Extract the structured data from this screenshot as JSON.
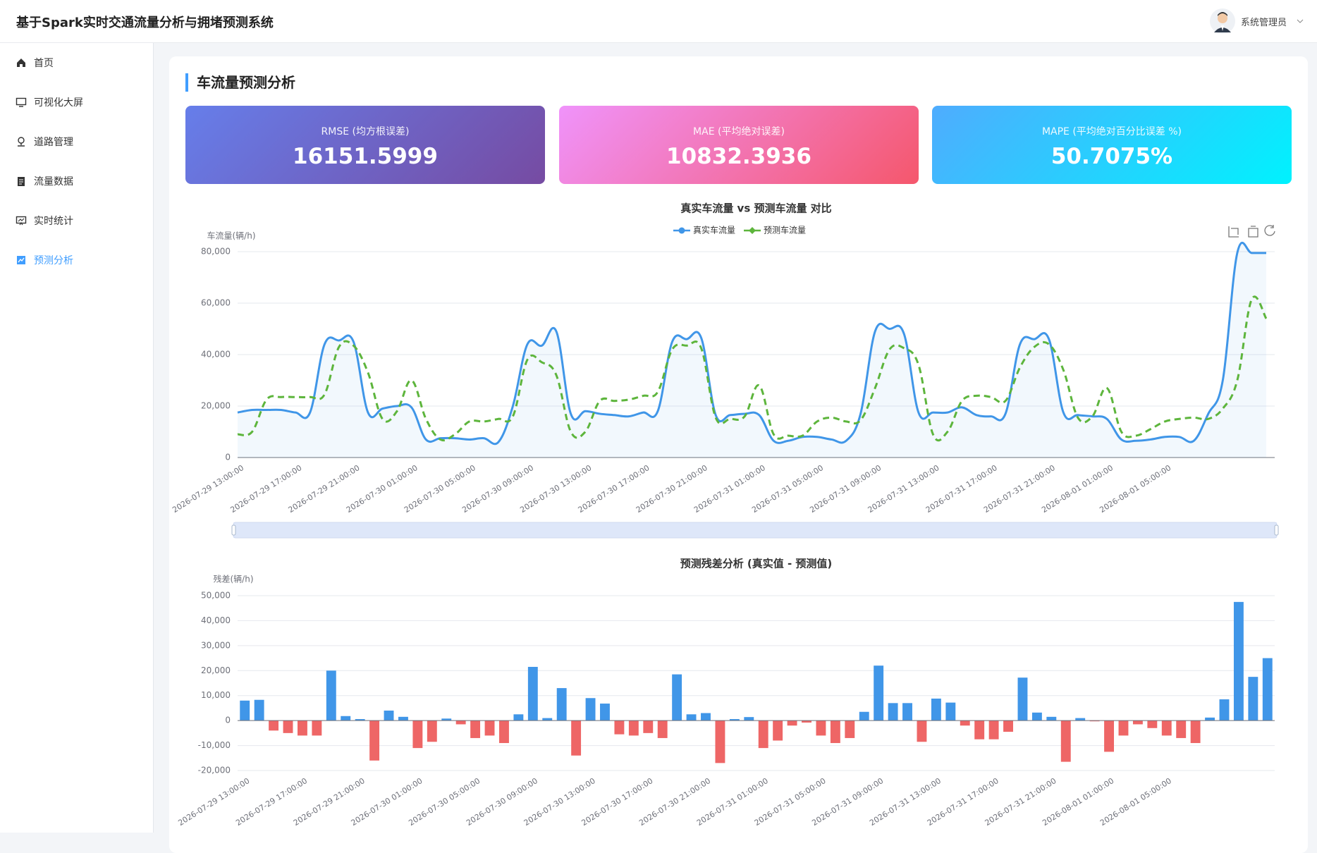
{
  "header": {
    "title": "基于Spark实时交通流量分析与拥堵预测系统",
    "user": "系统管理员"
  },
  "nav": [
    "首页",
    "可视化大屏",
    "道路管理",
    "流量数据",
    "实时统计",
    "预测分析"
  ],
  "section_title": "车流量预测分析",
  "metrics": [
    {
      "label": "RMSE (均方根误差)",
      "value": "16151.5999"
    },
    {
      "label": "MAE (平均绝对误差)",
      "value": "10832.3936"
    },
    {
      "label": "MAPE (平均绝对百分比误差 %)",
      "value": "50.7075%"
    }
  ],
  "chart_data": [
    {
      "type": "line",
      "title": "真实车流量 vs 预测车流量 对比",
      "y_label": "车流量(辆/h)",
      "categories": [
        "2026-07-29 13:00:00",
        null,
        null,
        null,
        "2026-07-29 17:00:00",
        null,
        null,
        null,
        "2026-07-29 21:00:00",
        null,
        null,
        null,
        "2026-07-30 01:00:00",
        null,
        null,
        null,
        "2026-07-30 05:00:00",
        null,
        null,
        null,
        "2026-07-30 09:00:00",
        null,
        null,
        null,
        "2026-07-30 13:00:00",
        null,
        null,
        null,
        "2026-07-30 17:00:00",
        null,
        null,
        null,
        "2026-07-30 21:00:00",
        null,
        null,
        null,
        "2026-07-31 01:00:00",
        null,
        null,
        null,
        "2026-07-31 05:00:00",
        null,
        null,
        null,
        "2026-07-31 09:00:00",
        null,
        null,
        null,
        "2026-07-31 13:00:00",
        null,
        null,
        null,
        "2026-07-31 17:00:00",
        null,
        null,
        null,
        "2026-07-31 21:00:00",
        null,
        null,
        null,
        "2026-08-01 01:00:00",
        null,
        null,
        null,
        "2026-08-01 05:00:00",
        null,
        null,
        null,
        null,
        null,
        null,
        null
      ],
      "series": [
        {
          "name": "真实车流量",
          "color": "#4096e8",
          "area": true,
          "dashed": false,
          "values": [
            17500,
            18500,
            18500,
            18500,
            17500,
            17500,
            44000,
            45500,
            45000,
            17500,
            19000,
            20000,
            19500,
            7000,
            7500,
            7500,
            7000,
            7500,
            6000,
            20000,
            44000,
            43500,
            49000,
            17000,
            18000,
            17000,
            16500,
            16000,
            17500,
            18000,
            45000,
            46000,
            46500,
            16500,
            16500,
            17000,
            16500,
            6500,
            6500,
            8000,
            8000,
            7000,
            6500,
            17000,
            49000,
            50000,
            48000,
            17500,
            17500,
            17500,
            19500,
            16500,
            16000,
            17000,
            44000,
            46000,
            46000,
            17500,
            16500,
            16000,
            15000,
            7000,
            6500,
            7000,
            8000,
            8000,
            6500,
            17000,
            30000,
            79500,
            79500,
            79500
          ]
        },
        {
          "name": "预测车流量",
          "color": "#5db53c",
          "area": false,
          "dashed": true,
          "values": [
            9000,
            10000,
            22500,
            23500,
            23500,
            23500,
            24500,
            43000,
            43500,
            33000,
            15000,
            18000,
            30000,
            15000,
            7000,
            9000,
            14000,
            14000,
            15000,
            16000,
            38000,
            37000,
            32000,
            10000,
            10000,
            22000,
            22000,
            22500,
            24000,
            25500,
            42000,
            43500,
            42500,
            15500,
            15000,
            16000,
            28000,
            9000,
            8500,
            8500,
            14000,
            15500,
            14000,
            14500,
            27000,
            42000,
            42500,
            36000,
            9000,
            10000,
            22000,
            24000,
            23500,
            22000,
            35000,
            43000,
            44000,
            34000,
            15500,
            16000,
            27000,
            10000,
            8500,
            11000,
            14000,
            15000,
            15500,
            15000,
            19000,
            30000,
            61500,
            54000
          ]
        }
      ],
      "ylim": [
        0,
        80000
      ],
      "yticks": [
        0,
        {
          "value": 20000,
          "label": "20,000"
        },
        {
          "value": 40000,
          "label": "40,000"
        },
        {
          "value": 60000,
          "label": "60,000"
        },
        {
          "value": 80000,
          "label": "80,000"
        }
      ],
      "grid": true
    },
    {
      "type": "bar",
      "title": "预测残差分析 (真实值 - 预测值)",
      "y_label": "残差(辆/h)",
      "categories": [
        "2026-07-29 13:00:00",
        null,
        null,
        null,
        "2026-07-29 17:00:00",
        null,
        null,
        null,
        "2026-07-29 21:00:00",
        null,
        null,
        null,
        "2026-07-30 01:00:00",
        null,
        null,
        null,
        "2026-07-30 05:00:00",
        null,
        null,
        null,
        "2026-07-30 09:00:00",
        null,
        null,
        null,
        "2026-07-30 13:00:00",
        null,
        null,
        null,
        "2026-07-30 17:00:00",
        null,
        null,
        null,
        "2026-07-30 21:00:00",
        null,
        null,
        null,
        "2026-07-31 01:00:00",
        null,
        null,
        null,
        "2026-07-31 05:00:00",
        null,
        null,
        null,
        "2026-07-31 09:00:00",
        null,
        null,
        null,
        "2026-07-31 13:00:00",
        null,
        null,
        null,
        "2026-07-31 17:00:00",
        null,
        null,
        null,
        "2026-07-31 21:00:00",
        null,
        null,
        null,
        "2026-08-01 01:00:00",
        null,
        null,
        null,
        "2026-08-01 05:00:00",
        null,
        null,
        null,
        null,
        null,
        null,
        null
      ],
      "values": [
        8000,
        8300,
        -4000,
        -5000,
        -6000,
        -6000,
        20000,
        1800,
        600,
        -16000,
        4000,
        1500,
        -11000,
        -8500,
        800,
        -1500,
        -7000,
        -6000,
        -9000,
        2500,
        21500,
        1000,
        13000,
        -14000,
        9000,
        6800,
        -5500,
        -6000,
        -5000,
        -7000,
        18500,
        2500,
        3000,
        -17000,
        600,
        1400,
        -11000,
        -8000,
        -2000,
        -800,
        -6000,
        -9000,
        -7000,
        3500,
        22000,
        7000,
        7000,
        -8500,
        8800,
        7200,
        -2000,
        -7500,
        -7500,
        -4500,
        17200,
        3200,
        1500,
        -16500,
        1000,
        -300,
        -12500,
        -6000,
        -1500,
        -3000,
        -6000,
        -7000,
        -9000,
        1200,
        8500,
        47500,
        17500,
        25000
      ],
      "color": "#4096e8",
      "negative_color": "#ee6666",
      "ylim": [
        -20000,
        50000
      ],
      "yticks": [
        {
          "value": -20000,
          "label": "-20,000"
        },
        {
          "value": -10000,
          "label": "-10,000"
        },
        0,
        {
          "value": 10000,
          "label": "10,000"
        },
        {
          "value": 20000,
          "label": "20,000"
        },
        {
          "value": 30000,
          "label": "30,000"
        },
        {
          "value": 40000,
          "label": "40,000"
        },
        {
          "value": 50000,
          "label": "50,000"
        }
      ],
      "grid": true
    }
  ]
}
